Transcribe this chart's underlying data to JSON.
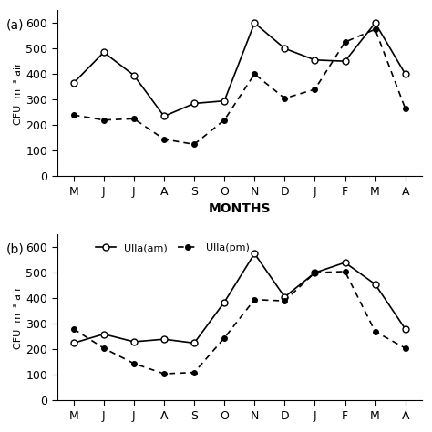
{
  "months": [
    "M",
    "J",
    "J",
    "A",
    "S",
    "O",
    "N",
    "D",
    "J",
    "F",
    "M",
    "A"
  ],
  "panel_a": {
    "solid_line": [
      365,
      485,
      395,
      235,
      285,
      295,
      600,
      500,
      455,
      450,
      600,
      400
    ],
    "dashed_line": [
      240,
      220,
      225,
      145,
      125,
      220,
      400,
      305,
      340,
      525,
      575,
      265
    ]
  },
  "panel_b": {
    "solid_line": [
      225,
      260,
      230,
      240,
      225,
      385,
      575,
      405,
      500,
      540,
      455,
      280
    ],
    "dashed_line": [
      280,
      205,
      145,
      105,
      110,
      245,
      395,
      390,
      500,
      505,
      270,
      205
    ]
  },
  "ylabel": "CFU  m⁻³ air",
  "xlabel": "MONTHS",
  "ylim_a": [
    0,
    650
  ],
  "ylim_b": [
    0,
    650
  ],
  "yticks": [
    0,
    100,
    200,
    300,
    400,
    500,
    600
  ],
  "legend_b": {
    "solid_label": "Ulla(am)",
    "dashed_label": "Ulla(pm)"
  },
  "background_color": "#ffffff",
  "line_color": "black"
}
